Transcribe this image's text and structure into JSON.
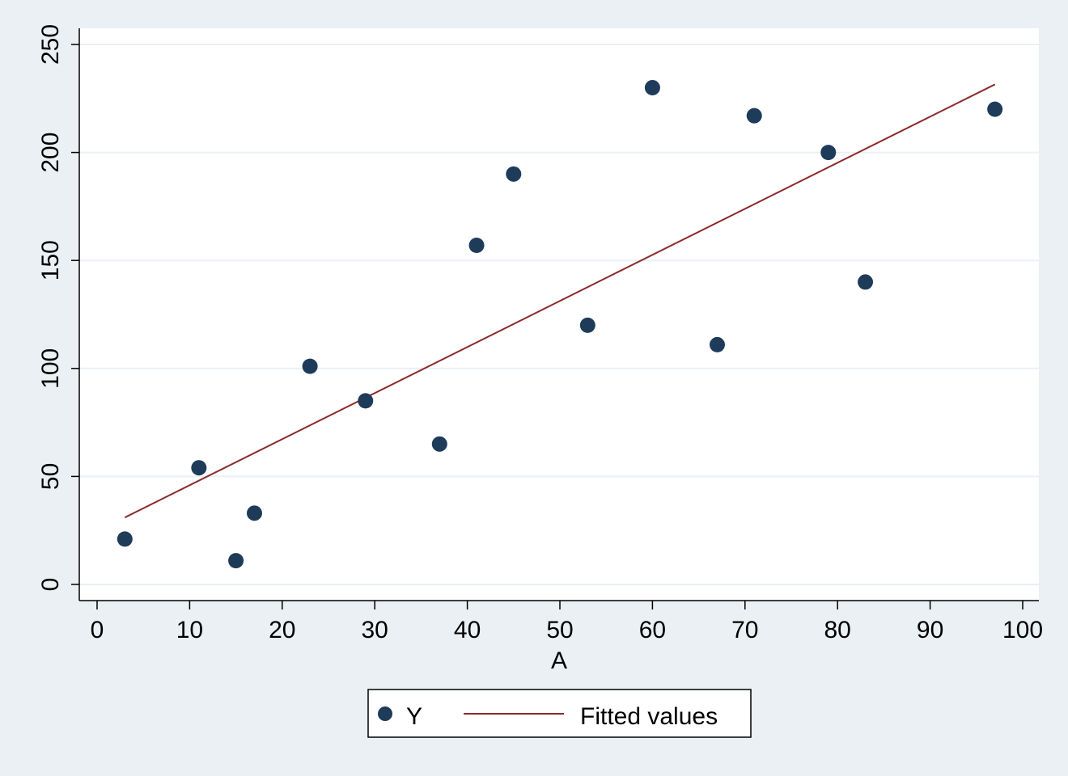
{
  "chart_data": {
    "type": "scatter",
    "title": "",
    "xlabel": "A",
    "ylabel": "",
    "xlim": [
      0,
      100
    ],
    "ylim": [
      0,
      250
    ],
    "xticks": [
      0,
      10,
      20,
      30,
      40,
      50,
      60,
      70,
      80,
      90,
      100
    ],
    "yticks": [
      0,
      50,
      100,
      150,
      200,
      250
    ],
    "grid": true,
    "legend_position": "bottom",
    "series": [
      {
        "name": "Y",
        "type": "scatter",
        "color": "#1f3b5a",
        "x": [
          3,
          11,
          15,
          17,
          23,
          29,
          37,
          41,
          45,
          53,
          60,
          67,
          71,
          79,
          83,
          97
        ],
        "y": [
          21,
          54,
          11,
          33,
          101,
          85,
          65,
          157,
          190,
          120,
          230,
          111,
          217,
          200,
          140,
          220
        ]
      },
      {
        "name": "Fitted values",
        "type": "line",
        "color": "#8b2b2b",
        "x": [
          3,
          97
        ],
        "y": [
          31,
          231.5
        ]
      }
    ]
  }
}
